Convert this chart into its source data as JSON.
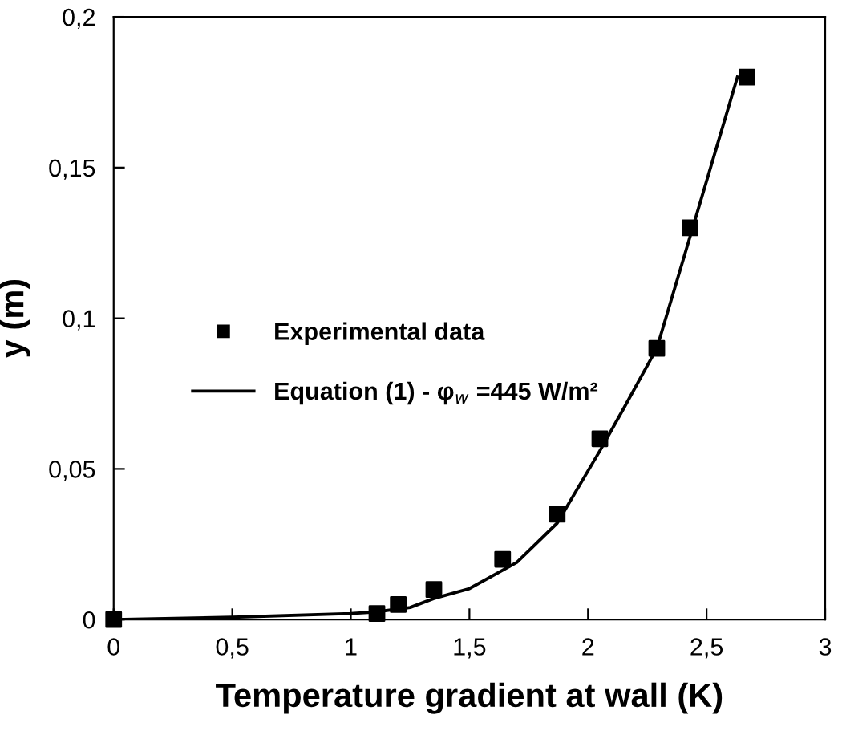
{
  "chart_data": {
    "type": "scatter",
    "xlabel": "Temperature gradient at wall (K)",
    "ylabel": "y (m)",
    "series": [
      {
        "name": "Experimental data",
        "color": "#000000",
        "marker": "square",
        "x": [
          0,
          1.11,
          1.2,
          1.35,
          1.64,
          1.87,
          2.05,
          2.29,
          2.43,
          2.67
        ],
        "values": [
          0,
          0.002,
          0.005,
          0.01,
          0.02,
          0.035,
          0.06,
          0.09,
          0.13,
          0.18
        ]
      },
      {
        "name": "Equation (1) - φ$_{w}$ =445 W/m²",
        "type": "line",
        "color": "#000000",
        "marker": "none",
        "line_style": "solid",
        "x": [
          0,
          0.5,
          1,
          1.1,
          1.25,
          1.35,
          1.5,
          1.7,
          1.87,
          2.05,
          2.15,
          2.29,
          2.43,
          2.63
        ],
        "values": [
          0,
          0.0008,
          0.002,
          0.0025,
          0.004,
          0.007,
          0.0103,
          0.019,
          0.032,
          0.056,
          0.07,
          0.09,
          0.127,
          0.18
        ]
      }
    ],
    "xlim": [
      0,
      3
    ],
    "ylim": [
      0,
      0.2
    ],
    "xticks": [
      {
        "value": 0,
        "label": "0"
      },
      {
        "value": 0.5,
        "label": "0,5"
      },
      {
        "value": 1,
        "label": "1"
      },
      {
        "value": 1.5,
        "label": "1,5"
      },
      {
        "value": 2,
        "label": "2"
      },
      {
        "value": 2.5,
        "label": "2,5"
      },
      {
        "value": 3,
        "label": "3"
      }
    ],
    "yticks": [
      {
        "value": 0,
        "label": "0"
      },
      {
        "value": 0.05,
        "label": "0,05"
      },
      {
        "value": 0.1,
        "label": "0,1"
      },
      {
        "value": 0.15,
        "label": "0,15"
      },
      {
        "value": 0.2,
        "label": "0,2"
      }
    ],
    "grid": false,
    "legend": "center left"
  }
}
